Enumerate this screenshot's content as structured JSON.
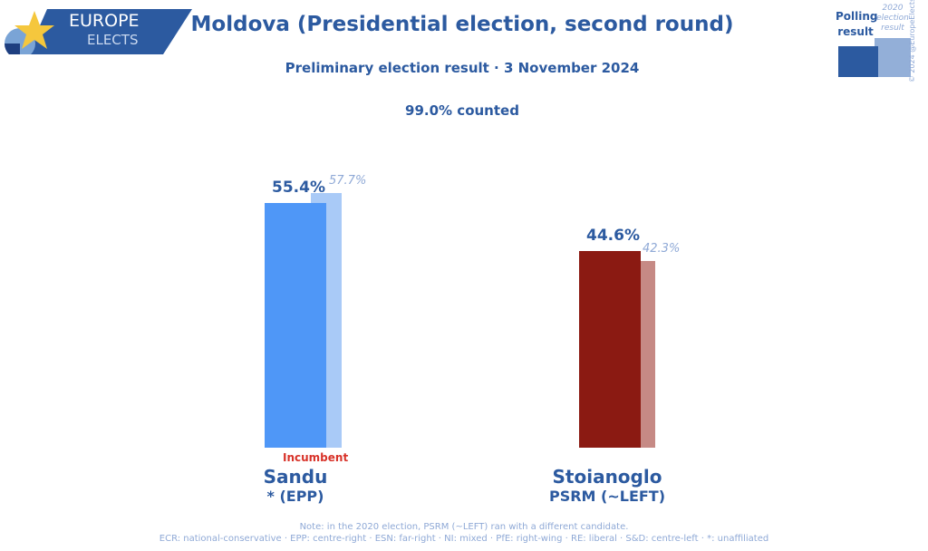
{
  "logo": {
    "line1": "EUROPE",
    "line2": "ELECTS"
  },
  "legend": {
    "polling": "Polling result",
    "previous": "2020 election result",
    "copyright": "© 2024 @EuropeElects"
  },
  "colors": {
    "sandu": "#4f97f7",
    "sandu_prev": "#a9caf7",
    "stoianoglo": "#8b1a12",
    "stoianoglo_prev": "#c68a85"
  },
  "chart_data": {
    "type": "bar",
    "title": "Moldova (Presidential election, second round)",
    "subtitle": "Preliminary election result · 3 November 2024",
    "counted": "99.0% counted",
    "categories": [
      "Sandu",
      "Stoianoglo"
    ],
    "parties": [
      "* (EPP)",
      "PSRM (~LEFT)"
    ],
    "series": [
      {
        "name": "Polling result",
        "values": [
          55.4,
          44.6
        ],
        "labels": [
          "55.4%",
          "44.6%"
        ]
      },
      {
        "name": "2020 election result",
        "values": [
          57.7,
          42.3
        ],
        "labels": [
          "57.7%",
          "42.3%"
        ]
      }
    ],
    "annotation": "Incumbent",
    "ylim": [
      0,
      60
    ]
  },
  "footer": {
    "note": "Note: in the 2020 election, PSRM (~LEFT) ran with a different candidate.",
    "groups": "ECR: national-conservative · EPP: centre-right · ESN: far-right · NI: mixed · PfE: right-wing · RE: liberal · S&D: centre-left · *: unaffiliated"
  }
}
